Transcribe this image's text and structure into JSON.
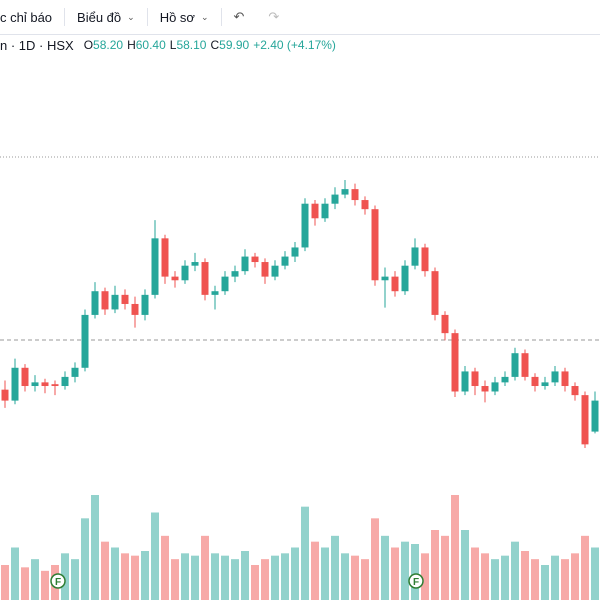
{
  "toolbar": {
    "items": [
      "c chỉ báo",
      "Biểu đồ",
      "Hồ sơ"
    ]
  },
  "legend": {
    "symbol": "n · 1D · HSX",
    "ohlc": [
      {
        "label": "O",
        "value": "58.20"
      },
      {
        "label": "H",
        "value": "60.40"
      },
      {
        "label": "L",
        "value": "58.10"
      },
      {
        "label": "C",
        "value": "59.90"
      }
    ],
    "change": "+2.40 (+4.17%)"
  },
  "events": [
    "F",
    "F"
  ],
  "chart_data": {
    "type": "candlestick",
    "up_color": "#26a69a",
    "down_color": "#ef5350",
    "candles": [
      [
        60.5,
        61.0,
        59.5,
        59.9
      ],
      [
        59.9,
        62.2,
        59.7,
        61.7
      ],
      [
        61.7,
        61.9,
        60.4,
        60.7
      ],
      [
        60.7,
        61.3,
        60.4,
        60.9
      ],
      [
        60.9,
        61.1,
        60.3,
        60.7
      ],
      [
        60.8,
        61.0,
        60.2,
        60.7
      ],
      [
        60.7,
        61.5,
        60.5,
        61.2
      ],
      [
        61.2,
        62.0,
        60.9,
        61.7
      ],
      [
        61.7,
        64.9,
        61.5,
        64.6
      ],
      [
        64.6,
        66.4,
        64.4,
        65.9
      ],
      [
        65.9,
        66.1,
        64.6,
        64.9
      ],
      [
        64.9,
        66.2,
        64.7,
        65.7
      ],
      [
        65.7,
        66.0,
        64.9,
        65.2
      ],
      [
        65.2,
        65.6,
        63.9,
        64.6
      ],
      [
        64.6,
        66.0,
        64.3,
        65.7
      ],
      [
        65.7,
        69.8,
        65.5,
        68.8
      ],
      [
        68.8,
        69.0,
        66.3,
        66.7
      ],
      [
        66.7,
        67.0,
        66.1,
        66.5
      ],
      [
        66.5,
        67.6,
        66.3,
        67.3
      ],
      [
        67.3,
        68.0,
        67.0,
        67.5
      ],
      [
        67.5,
        67.7,
        65.4,
        65.7
      ],
      [
        65.7,
        66.2,
        64.9,
        65.9
      ],
      [
        65.9,
        67.0,
        65.7,
        66.7
      ],
      [
        66.7,
        67.3,
        66.4,
        67.0
      ],
      [
        67.0,
        68.2,
        66.8,
        67.8
      ],
      [
        67.8,
        68.0,
        67.2,
        67.5
      ],
      [
        67.5,
        67.7,
        66.3,
        66.7
      ],
      [
        66.7,
        67.6,
        66.5,
        67.3
      ],
      [
        67.3,
        68.1,
        67.1,
        67.8
      ],
      [
        67.8,
        68.6,
        67.5,
        68.3
      ],
      [
        68.3,
        71.0,
        68.1,
        70.7
      ],
      [
        70.7,
        70.9,
        69.5,
        69.9
      ],
      [
        69.9,
        71.0,
        69.7,
        70.7
      ],
      [
        70.7,
        71.6,
        70.4,
        71.2
      ],
      [
        71.2,
        72.0,
        71.0,
        71.5
      ],
      [
        71.5,
        71.8,
        70.6,
        70.9
      ],
      [
        70.9,
        71.1,
        70.1,
        70.4
      ],
      [
        70.4,
        70.6,
        66.2,
        66.5
      ],
      [
        66.5,
        67.2,
        65.0,
        66.7
      ],
      [
        66.7,
        67.0,
        65.6,
        65.9
      ],
      [
        65.9,
        67.6,
        65.7,
        67.3
      ],
      [
        67.3,
        68.8,
        67.1,
        68.3
      ],
      [
        68.3,
        68.5,
        66.7,
        67.0
      ],
      [
        67.0,
        67.2,
        64.3,
        64.6
      ],
      [
        64.6,
        64.8,
        63.2,
        63.6
      ],
      [
        63.6,
        63.8,
        60.1,
        60.4
      ],
      [
        60.4,
        61.8,
        60.2,
        61.5
      ],
      [
        61.5,
        61.7,
        60.2,
        60.7
      ],
      [
        60.7,
        61.0,
        59.8,
        60.4
      ],
      [
        60.4,
        61.2,
        60.2,
        60.9
      ],
      [
        60.9,
        61.5,
        60.7,
        61.2
      ],
      [
        61.2,
        62.8,
        61.0,
        62.5
      ],
      [
        62.5,
        62.7,
        61.0,
        61.2
      ],
      [
        61.2,
        61.4,
        60.4,
        60.7
      ],
      [
        60.7,
        61.2,
        60.5,
        60.9
      ],
      [
        60.9,
        61.8,
        60.7,
        61.5
      ],
      [
        61.5,
        61.7,
        60.4,
        60.7
      ],
      [
        60.7,
        60.9,
        59.9,
        60.2
      ],
      [
        60.2,
        60.4,
        57.3,
        57.5
      ],
      [
        58.2,
        60.4,
        58.1,
        59.9
      ]
    ],
    "volume": [
      30,
      45,
      28,
      35,
      25,
      30,
      40,
      35,
      70,
      90,
      50,
      45,
      40,
      38,
      42,
      75,
      55,
      35,
      40,
      38,
      55,
      40,
      38,
      35,
      42,
      30,
      35,
      38,
      40,
      45,
      80,
      50,
      45,
      55,
      40,
      38,
      35,
      70,
      55,
      45,
      50,
      48,
      40,
      60,
      55,
      90,
      60,
      45,
      40,
      35,
      38,
      50,
      42,
      35,
      30,
      38,
      35,
      40,
      55,
      45
    ]
  }
}
